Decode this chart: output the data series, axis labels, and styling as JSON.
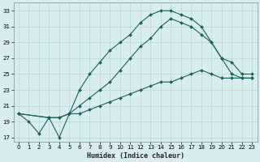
{
  "xlabel": "Humidex (Indice chaleur)",
  "background_color": "#d8eeee",
  "grid_color": "#b8d8d8",
  "line_color": "#1a6060",
  "xlim": [
    -0.5,
    23.5
  ],
  "ylim": [
    16.5,
    34.0
  ],
  "xticks": [
    0,
    1,
    2,
    3,
    4,
    5,
    6,
    7,
    8,
    9,
    10,
    11,
    12,
    13,
    14,
    15,
    16,
    17,
    18,
    19,
    20,
    21,
    22,
    23
  ],
  "yticks": [
    17,
    19,
    21,
    23,
    25,
    27,
    29,
    31,
    33
  ],
  "series1_x": [
    0,
    1,
    2,
    3,
    4,
    5,
    6,
    7,
    8,
    9,
    10,
    11,
    12,
    13,
    14,
    15,
    16,
    17,
    18,
    19,
    20,
    21,
    22,
    23
  ],
  "series1_y": [
    20,
    19,
    17.5,
    19.5,
    17,
    20,
    23,
    25,
    26.5,
    28,
    29,
    30,
    31.5,
    32.5,
    33,
    33,
    32.5,
    32,
    31,
    29,
    27,
    26.5,
    25,
    25
  ],
  "series2_x": [
    0,
    3,
    4,
    5,
    6,
    7,
    8,
    9,
    10,
    11,
    12,
    13,
    14,
    15,
    16,
    17,
    18,
    19,
    20,
    21,
    22,
    23
  ],
  "series2_y": [
    20,
    19.5,
    19.5,
    20,
    21,
    22,
    23,
    24,
    25.5,
    27,
    28.5,
    29.5,
    31,
    32,
    31.5,
    31,
    30,
    29,
    27,
    25,
    24.5,
    24.5
  ],
  "series3_x": [
    0,
    3,
    4,
    5,
    6,
    7,
    8,
    9,
    10,
    11,
    12,
    13,
    14,
    15,
    16,
    17,
    18,
    19,
    20,
    21,
    22,
    23
  ],
  "series3_y": [
    20,
    19.5,
    19.5,
    20,
    20,
    20.5,
    21,
    21.5,
    22,
    22.5,
    23,
    23.5,
    24,
    24,
    24.5,
    25,
    25.5,
    25,
    24.5,
    24.5,
    24.5,
    24.5
  ]
}
